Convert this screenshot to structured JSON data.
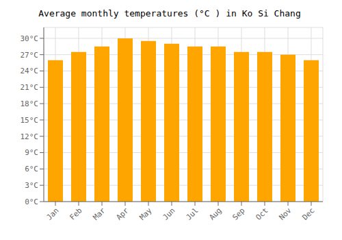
{
  "chart_data": {
    "type": "bar",
    "title": "Average monthly temperatures (°C ) in Ko Si Chang",
    "categories": [
      "Jan",
      "Feb",
      "Mar",
      "Apr",
      "May",
      "Jun",
      "Jul",
      "Aug",
      "Sep",
      "Oct",
      "Nov",
      "Dec"
    ],
    "values": [
      26.0,
      27.5,
      28.5,
      30.0,
      29.5,
      29.0,
      28.5,
      28.5,
      27.5,
      27.5,
      27.0,
      26.0
    ],
    "color": "#FFA500",
    "ylim": [
      0,
      32
    ],
    "yticks": [
      {
        "value": 0,
        "label": "0°C"
      },
      {
        "value": 3,
        "label": "3°C"
      },
      {
        "value": 6,
        "label": "6°C"
      },
      {
        "value": 9,
        "label": "9°C"
      },
      {
        "value": 12,
        "label": "12°C"
      },
      {
        "value": 15,
        "label": "15°C"
      },
      {
        "value": 18,
        "label": "18°C"
      },
      {
        "value": 21,
        "label": "21°C"
      },
      {
        "value": 24,
        "label": "24°C"
      },
      {
        "value": 27,
        "label": "27°C"
      },
      {
        "value": 30,
        "label": "30°C"
      }
    ],
    "grid": true
  }
}
